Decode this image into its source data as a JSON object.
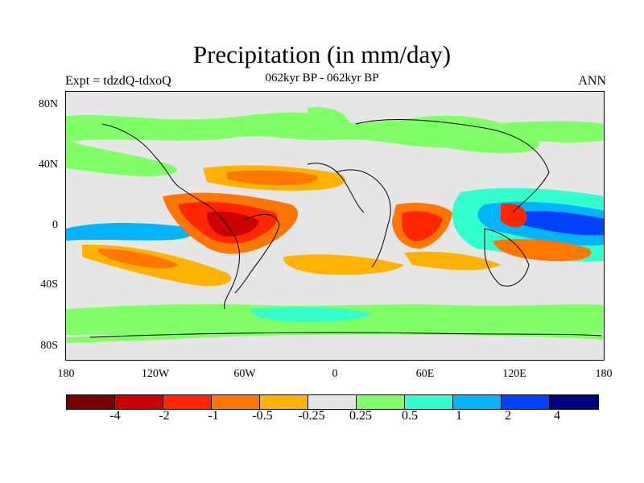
{
  "title": "Precipitation (in mm/day)",
  "subtitle": "062kyr BP - 062kyr BP",
  "left_label": "Expt = tdzdQ-tdxoQ",
  "right_label": "ANN",
  "map": {
    "lat_ticks": [
      "80N",
      "40N",
      "0",
      "40S",
      "80S"
    ],
    "lon_ticks": [
      "180",
      "120W",
      "60W",
      "0",
      "60E",
      "120E",
      "180"
    ],
    "background_color": "#e6e6e6",
    "regions": [
      {
        "name": "arctic-positive-band",
        "level": 0.25,
        "color": "#80ff66"
      },
      {
        "name": "southern-ocean-positive-band",
        "level": 0.25,
        "color": "#80ff66"
      },
      {
        "name": "north-atlantic-negative",
        "level": -0.5,
        "color": "#ffb300"
      },
      {
        "name": "amazon-negative",
        "level": -2,
        "color": "#cc0000"
      },
      {
        "name": "central-africa-negative",
        "level": -2,
        "color": "#ff2600"
      },
      {
        "name": "equatorial-pacific-positive",
        "level": 2,
        "color": "#0042ff"
      },
      {
        "name": "maritime-continent-negative",
        "level": -2,
        "color": "#ff2600"
      },
      {
        "name": "south-pacific-negative",
        "level": -0.5,
        "color": "#ffb300"
      }
    ]
  },
  "colorbar": {
    "colors": [
      "#7a0000",
      "#cc0000",
      "#ff2600",
      "#ff7700",
      "#ffb300",
      "#e6e6e6",
      "#80ff66",
      "#33ffcc",
      "#00b4ff",
      "#0042ff",
      "#000080"
    ],
    "labels": [
      "-4",
      "-2",
      "-1",
      "-0.5",
      "-0.25",
      "0.25",
      "0.5",
      "1",
      "2",
      "4"
    ]
  }
}
